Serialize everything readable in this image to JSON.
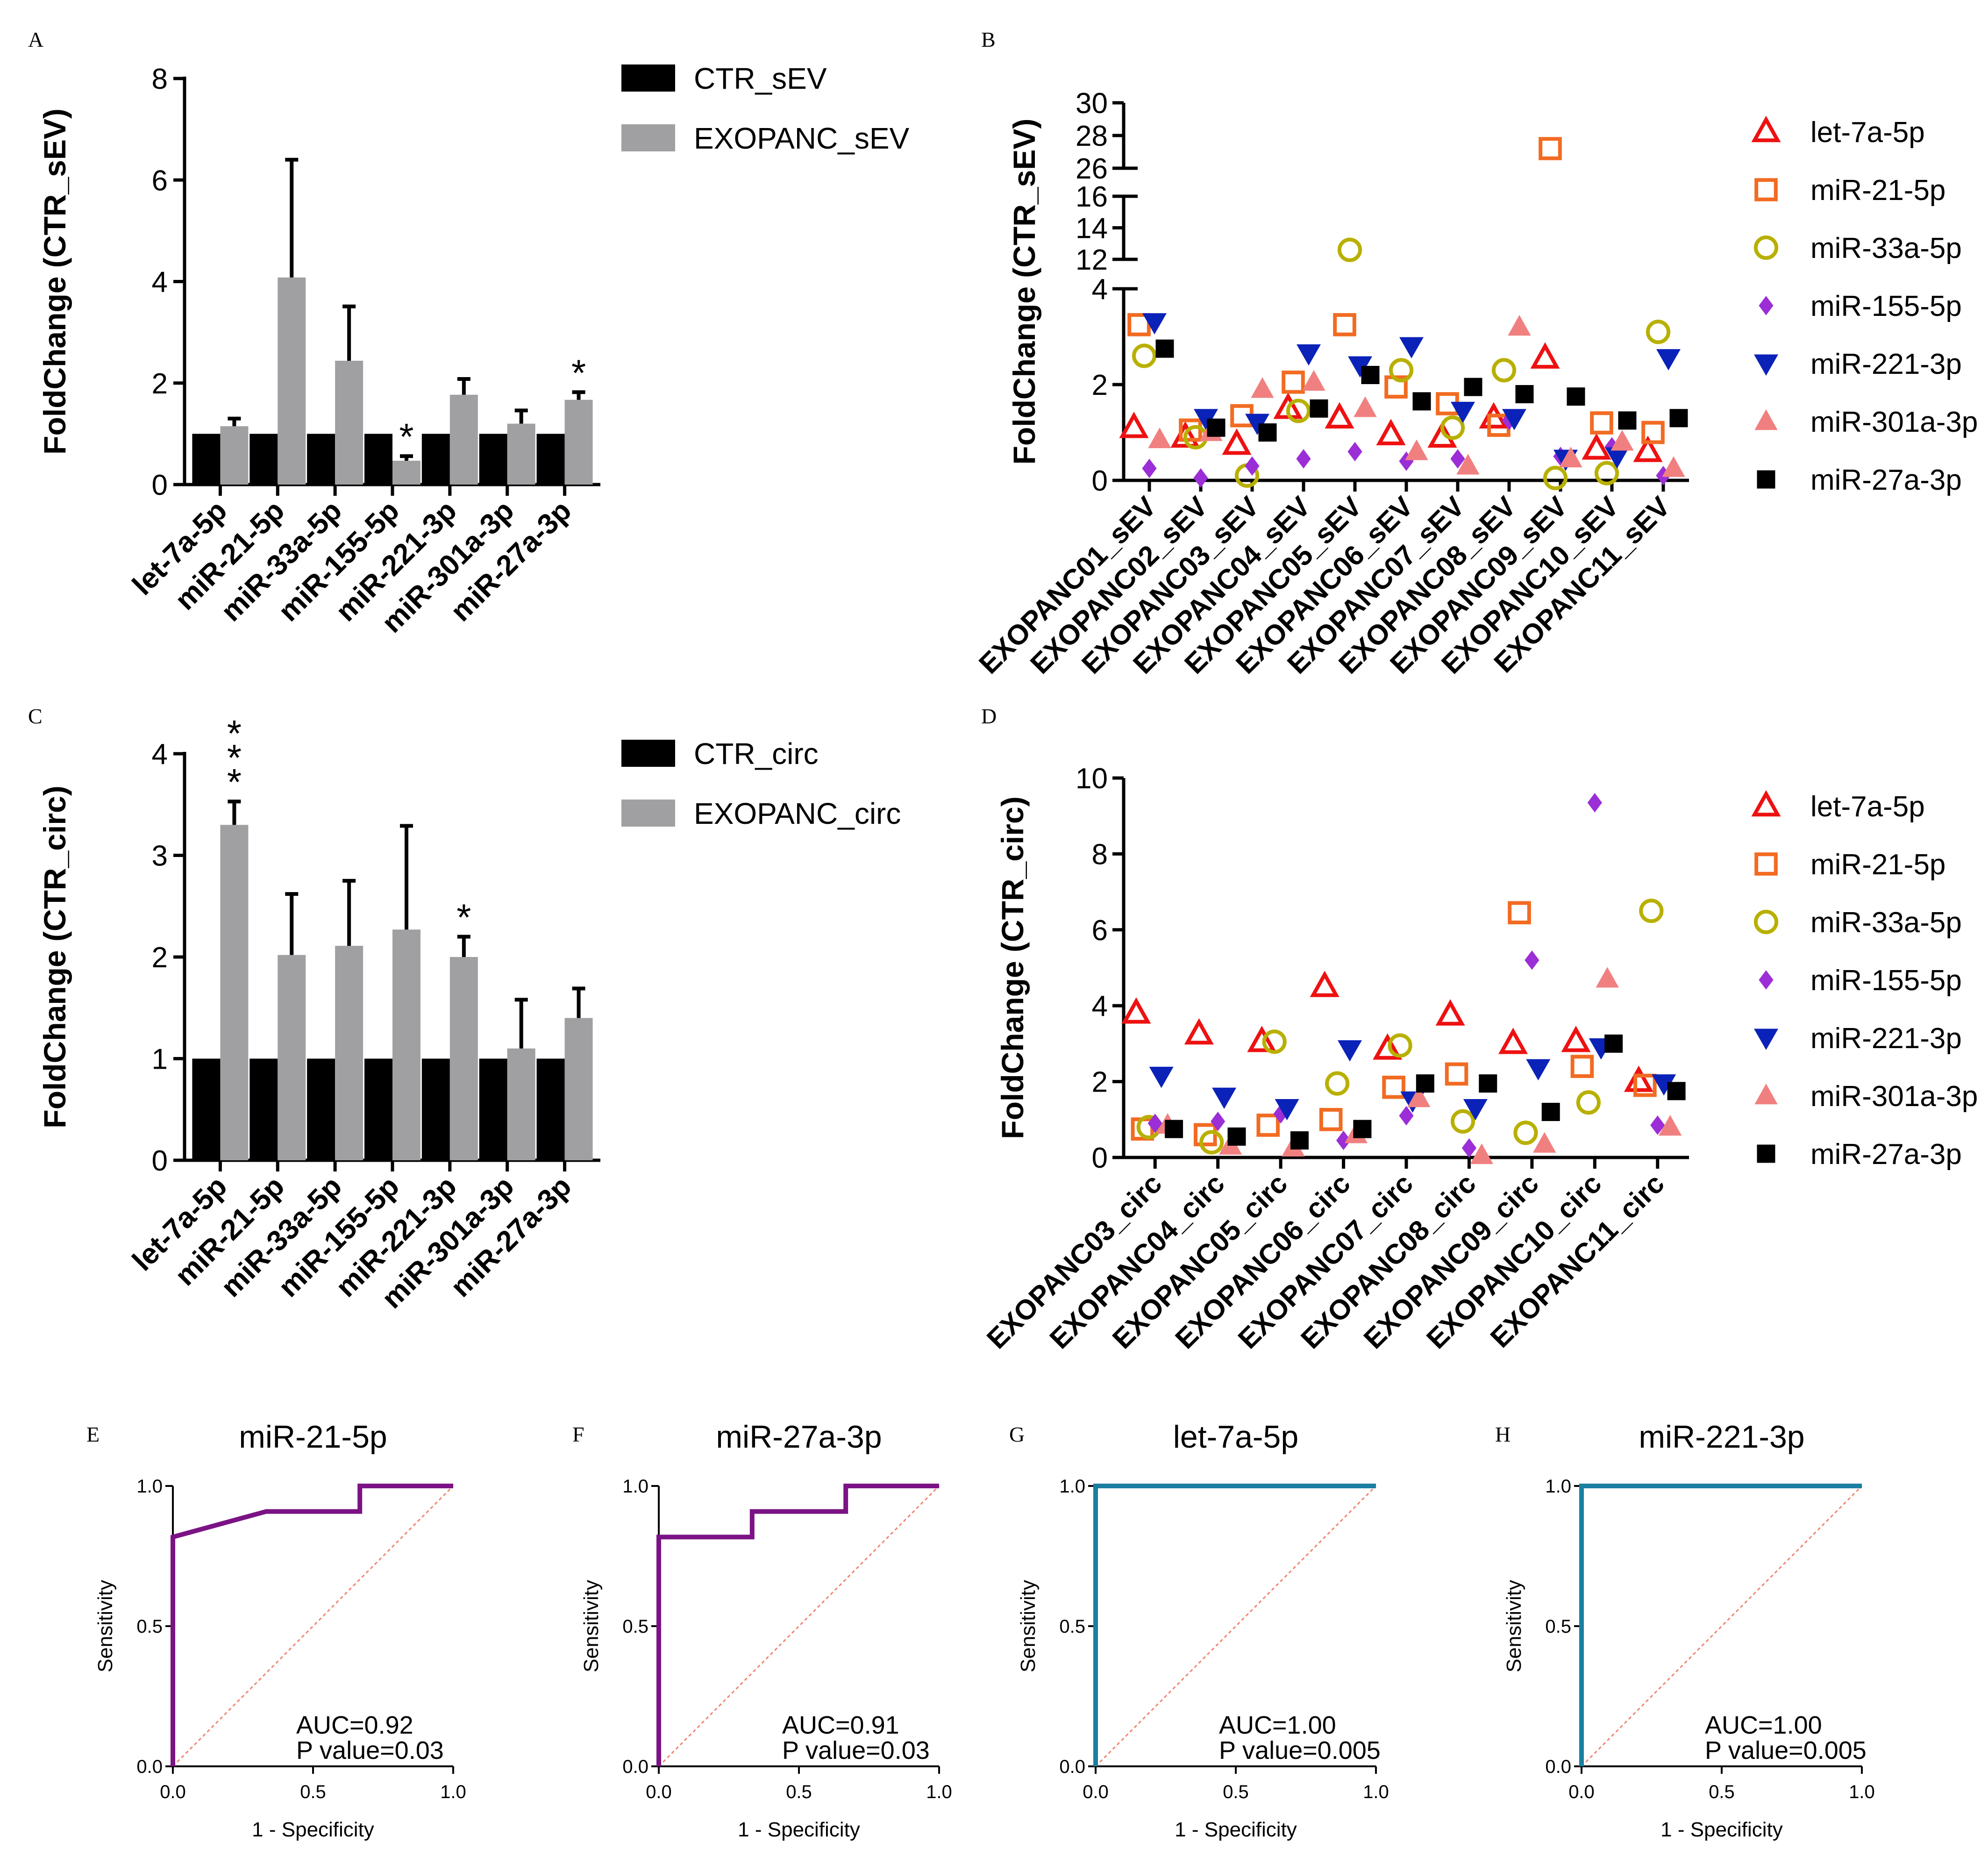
{
  "chart_data": [
    {
      "panel": "A",
      "type": "bar",
      "ylabel": "FoldChange (CTR_sEV)",
      "ylim": [
        0,
        8
      ],
      "yticks": [
        0,
        2,
        4,
        6,
        8
      ],
      "categories": [
        "let-7a-5p",
        "miR-21-5p",
        "miR-33a-5p",
        "miR-155-5p",
        "miR-221-3p",
        "miR-301a-3p",
        "miR-27a-3p"
      ],
      "series": [
        {
          "name": "CTR_sEV",
          "color": "#000000",
          "values": [
            1,
            1,
            1,
            1,
            1,
            1,
            1
          ]
        },
        {
          "name": "EXOPANC_sEV",
          "color": "#a0a0a2",
          "values": [
            1.15,
            4.08,
            2.44,
            0.47,
            1.77,
            1.2,
            1.67
          ],
          "errors": [
            0.15,
            2.32,
            1.07,
            0.09,
            0.31,
            0.26,
            0.15
          ]
        }
      ],
      "significance": [
        "",
        "",
        "",
        "*",
        "",
        "",
        "*"
      ],
      "legend": [
        "CTR_sEV",
        "EXOPANC_sEV"
      ]
    },
    {
      "panel": "B",
      "type": "scatter",
      "ylabel": "FoldChange (CTR_sEV)",
      "ylim": [
        0,
        30
      ],
      "yticks_lower": [
        0,
        2,
        4
      ],
      "yticks_mid": [
        12,
        14,
        16
      ],
      "yticks_upper": [
        26,
        28,
        30
      ],
      "categories": [
        "EXOPANC01_sEV",
        "EXOPANC02_sEV",
        "EXOPANC03_sEV",
        "EXOPANC04_sEV",
        "EXOPANC05_sEV",
        "EXOPANC06_sEV",
        "EXOPANC07_sEV",
        "EXOPANC08_sEV",
        "EXOPANC09_sEV",
        "EXOPANC10_sEV",
        "EXOPANC11_sEV"
      ],
      "series": [
        {
          "name": "let-7a-5p",
          "marker": "triangle-open",
          "color": "#ee1111",
          "values": [
            1.1,
            0.9,
            0.75,
            1.5,
            1.3,
            0.95,
            0.9,
            1.3,
            2.55,
            0.65,
            0.6
          ]
        },
        {
          "name": "miR-21-5p",
          "marker": "square-open",
          "color": "#f26b22",
          "values": [
            3.25,
            1.05,
            1.35,
            2.05,
            3.25,
            1.95,
            1.6,
            1.15,
            27.2,
            1.2,
            1.0
          ]
        },
        {
          "name": "miR-33a-5p",
          "marker": "circle-open",
          "color": "#b8b000",
          "values": [
            2.6,
            0.9,
            0.1,
            1.45,
            12.6,
            2.3,
            1.1,
            2.3,
            0.05,
            0.15,
            3.1
          ]
        },
        {
          "name": "miR-155-5p",
          "marker": "diamond",
          "color": "#9b2ed6",
          "values": [
            0.25,
            0.05,
            0.3,
            0.45,
            0.6,
            0.4,
            0.45,
            1.25,
            0.5,
            0.7,
            0.1
          ]
        },
        {
          "name": "miR-221-3p",
          "marker": "triangle-down",
          "color": "#0b22b8",
          "values": [
            3.3,
            1.3,
            1.2,
            2.65,
            2.4,
            2.8,
            1.45,
            1.3,
            0.45,
            0.5,
            2.55
          ]
        },
        {
          "name": "miR-301a-3p",
          "marker": "triangle-up",
          "color": "#f08080",
          "values": [
            0.85,
            1.0,
            1.9,
            2.05,
            1.5,
            0.6,
            0.3,
            3.2,
            0.45,
            0.8,
            0.25
          ]
        },
        {
          "name": "miR-27a-3p",
          "marker": "square",
          "color": "#000000",
          "values": [
            2.75,
            1.1,
            1.0,
            1.5,
            2.2,
            1.65,
            1.95,
            1.8,
            1.75,
            1.25,
            1.3
          ]
        }
      ]
    },
    {
      "panel": "C",
      "type": "bar",
      "ylabel": "FoldChange (CTR_circ)",
      "ylim": [
        0,
        4
      ],
      "yticks": [
        0,
        1,
        2,
        3,
        4
      ],
      "categories": [
        "let-7a-5p",
        "miR-21-5p",
        "miR-33a-5p",
        "miR-155-5p",
        "miR-221-3p",
        "miR-301a-3p",
        "miR-27a-3p"
      ],
      "series": [
        {
          "name": "CTR_circ",
          "color": "#000000",
          "values": [
            1,
            1,
            1,
            1,
            1,
            1,
            1
          ]
        },
        {
          "name": "EXOPANC_circ",
          "color": "#a0a0a2",
          "values": [
            3.3,
            2.02,
            2.11,
            2.27,
            2.0,
            1.1,
            1.4
          ],
          "errors": [
            0.23,
            0.6,
            0.64,
            1.02,
            0.2,
            0.48,
            0.29
          ]
        }
      ],
      "significance": [
        "***",
        "",
        "",
        "",
        "*",
        "",
        ""
      ],
      "legend": [
        "CTR_circ",
        "EXOPANC_circ"
      ]
    },
    {
      "panel": "D",
      "type": "scatter",
      "ylabel": "FoldChange (CTR_circ)",
      "ylim": [
        0,
        10
      ],
      "yticks": [
        0,
        2,
        4,
        6,
        8,
        10
      ],
      "categories": [
        "EXOPANC03_circ",
        "EXOPANC04_circ",
        "EXOPANC05_circ",
        "EXOPANC06_circ",
        "EXOPANC07_circ",
        "EXOPANC08_circ",
        "EXOPANC09_circ",
        "EXOPANC10_circ",
        "EXOPANC11_circ"
      ],
      "series": [
        {
          "name": "let-7a-5p",
          "marker": "triangle-open",
          "color": "#ee1111",
          "values": [
            3.8,
            3.25,
            3.05,
            4.5,
            2.85,
            3.75,
            3.0,
            3.05,
            2.0
          ]
        },
        {
          "name": "miR-21-5p",
          "marker": "square-open",
          "color": "#f26b22",
          "values": [
            0.75,
            0.6,
            0.85,
            1.0,
            1.85,
            2.2,
            6.45,
            2.4,
            1.9
          ]
        },
        {
          "name": "miR-33a-5p",
          "marker": "circle-open",
          "color": "#b8b000",
          "values": [
            0.8,
            0.4,
            3.05,
            1.95,
            2.95,
            0.95,
            0.65,
            1.45,
            6.5
          ]
        },
        {
          "name": "miR-155-5p",
          "marker": "diamond",
          "color": "#9b2ed6",
          "values": [
            0.9,
            0.95,
            1.15,
            0.45,
            1.1,
            0.25,
            5.2,
            9.35,
            0.85
          ]
        },
        {
          "name": "miR-221-3p",
          "marker": "triangle-down",
          "color": "#0b22b8",
          "values": [
            2.15,
            1.6,
            1.3,
            2.85,
            1.5,
            1.3,
            2.35,
            2.9,
            1.95
          ]
        },
        {
          "name": "miR-301a-3p",
          "marker": "triangle-up",
          "color": "#f08080",
          "values": [
            0.85,
            0.3,
            0.25,
            0.6,
            1.55,
            0.05,
            0.35,
            4.7,
            0.8
          ]
        },
        {
          "name": "miR-27a-3p",
          "marker": "square",
          "color": "#000000",
          "values": [
            0.75,
            0.55,
            0.45,
            0.75,
            1.95,
            1.95,
            1.2,
            3.0,
            1.75
          ]
        }
      ]
    },
    {
      "panel": "E",
      "type": "line",
      "title": "miR-21-5p",
      "xlabel": "1 - Specificity",
      "ylabel": "Sensitivity",
      "xlim": [
        0,
        1
      ],
      "ylim": [
        0,
        1
      ],
      "ticks": [
        "0.0",
        "0.5",
        "1.0"
      ],
      "color": "#7b1385",
      "x": [
        0,
        0,
        0.333,
        0.667,
        0.667,
        1
      ],
      "y": [
        0,
        0.818,
        0.909,
        0.909,
        1,
        1
      ],
      "auc": "AUC=0.92",
      "pvalue": "P value=0.03"
    },
    {
      "panel": "F",
      "type": "line",
      "title": "miR-27a-3p",
      "xlabel": "1 - Specificity",
      "ylabel": "Sensitivity",
      "xlim": [
        0,
        1
      ],
      "ylim": [
        0,
        1
      ],
      "ticks": [
        "0.0",
        "0.5",
        "1.0"
      ],
      "color": "#7b1385",
      "x": [
        0,
        0,
        0.333,
        0.333,
        0.667,
        0.667,
        1
      ],
      "y": [
        0,
        0.818,
        0.818,
        0.909,
        0.909,
        1,
        1
      ],
      "auc": "AUC=0.91",
      "pvalue": "P value=0.03"
    },
    {
      "panel": "G",
      "type": "line",
      "title": "let-7a-5p",
      "xlabel": "1 - Specificity",
      "ylabel": "Sensitivity",
      "xlim": [
        0,
        1
      ],
      "ylim": [
        0,
        1
      ],
      "ticks": [
        "0.0",
        "0.5",
        "1.0"
      ],
      "color": "#1a7fa0",
      "x": [
        0,
        0,
        1
      ],
      "y": [
        0,
        1,
        1
      ],
      "auc": "AUC=1.00",
      "pvalue": "P value=0.005"
    },
    {
      "panel": "H",
      "type": "line",
      "title": "miR-221-3p",
      "xlabel": "1 - Specificity",
      "ylabel": "Sensitivity",
      "xlim": [
        0,
        1
      ],
      "ylim": [
        0,
        1
      ],
      "ticks": [
        "0.0",
        "0.5",
        "1.0"
      ],
      "color": "#1a7fa0",
      "x": [
        0,
        0,
        1
      ],
      "y": [
        0,
        1,
        1
      ],
      "auc": "AUC=1.00",
      "pvalue": "P  value=0.005"
    }
  ]
}
